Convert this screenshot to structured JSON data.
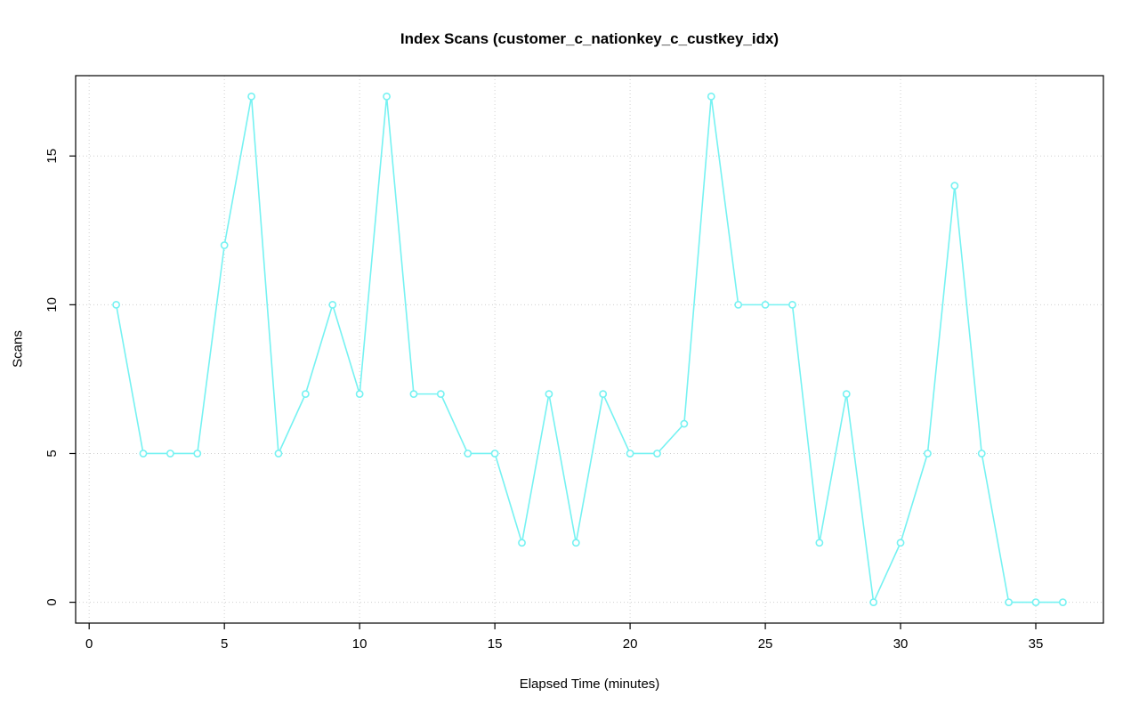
{
  "chart_data": {
    "type": "line",
    "title": "Index Scans (customer_c_nationkey_c_custkey_idx)",
    "xlabel": "Elapsed Time (minutes)",
    "ylabel": "Scans",
    "x": [
      1,
      2,
      3,
      4,
      5,
      6,
      7,
      8,
      9,
      10,
      11,
      12,
      13,
      14,
      15,
      16,
      17,
      18,
      19,
      20,
      21,
      22,
      23,
      24,
      25,
      26,
      27,
      28,
      29,
      30,
      31,
      32,
      33,
      34,
      35,
      36
    ],
    "values": [
      10,
      5,
      5,
      5,
      12,
      17,
      5,
      7,
      10,
      7,
      17,
      7,
      7,
      5,
      5,
      2,
      7,
      2,
      7,
      5,
      5,
      6,
      17,
      10,
      10,
      10,
      2,
      7,
      0,
      2,
      5,
      14,
      5,
      0,
      0,
      0
    ],
    "xlim": [
      -0.5,
      37.5
    ],
    "ylim": [
      -0.7,
      17.7
    ],
    "xticks": [
      0,
      5,
      10,
      15,
      20,
      25,
      30,
      35
    ],
    "yticks": [
      0,
      5,
      10,
      15
    ],
    "grid": true,
    "grid_style": "dotted",
    "legend": "none",
    "marker": "open-circle",
    "line_color": "#76F2F2",
    "grid_color": "#CFCFCF",
    "axis_color": "#000000",
    "background": "#FFFFFF"
  }
}
